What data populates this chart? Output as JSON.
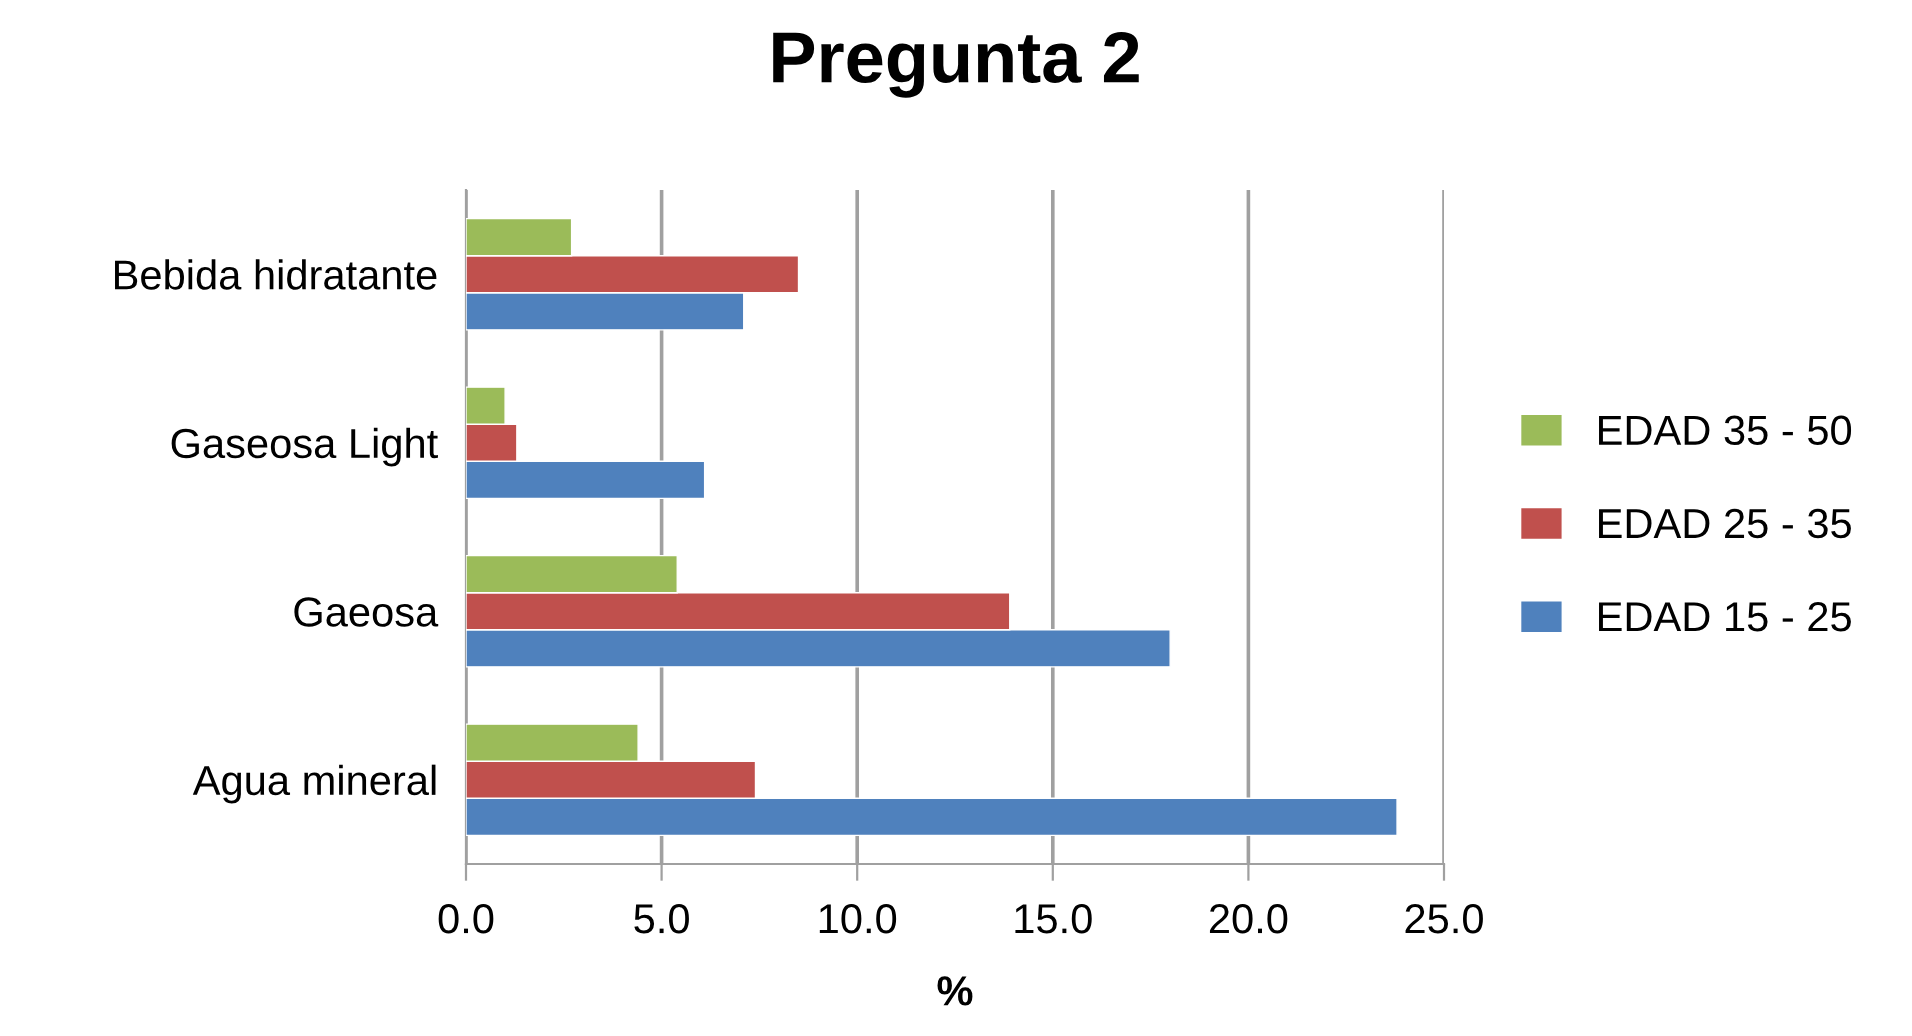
{
  "chart_data": {
    "type": "bar",
    "orientation": "horizontal",
    "title": "Pregunta 2",
    "xlabel": "%",
    "categories": [
      "Bebida hidratante",
      "Gaseosa Light",
      "Gaeosa",
      "Agua mineral"
    ],
    "series": [
      {
        "name": "EDAD 15 - 25",
        "color": "#4f81bd",
        "values": [
          7.1,
          6.1,
          18.0,
          23.8
        ]
      },
      {
        "name": "EDAD 25 - 35",
        "color": "#c0504d",
        "values": [
          8.5,
          1.3,
          13.9,
          7.4
        ]
      },
      {
        "name": "EDAD 35 - 50",
        "color": "#9bbb59",
        "values": [
          2.7,
          1.0,
          5.4,
          4.4
        ]
      }
    ],
    "xlim": [
      0,
      25
    ],
    "xticks": [
      {
        "value": 0,
        "label": "0.0"
      },
      {
        "value": 5,
        "label": "5.0"
      },
      {
        "value": 10,
        "label": "10.0"
      },
      {
        "value": 15,
        "label": "15.0"
      },
      {
        "value": 20,
        "label": "20.0"
      },
      {
        "value": 25,
        "label": "25.0"
      }
    ],
    "grid": "x",
    "legend": "right"
  }
}
